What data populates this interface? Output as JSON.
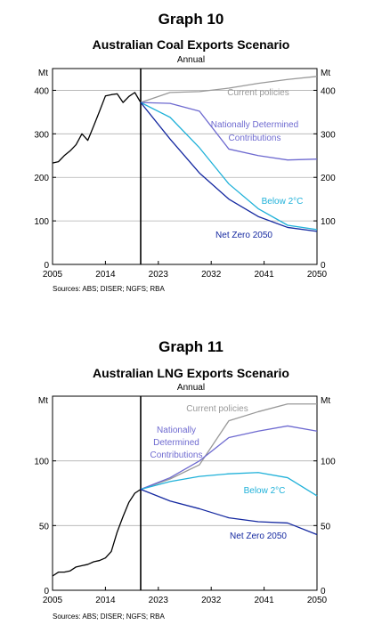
{
  "graphs": [
    {
      "label": "Graph 10",
      "sources": "Sources: ABS; DISER; NGFS; RBA",
      "chart": {
        "title": "Australian Coal Exports Scenario",
        "subtitle": "Annual",
        "unit": "Mt"
      }
    },
    {
      "label": "Graph 11",
      "sources": "Sources: ABS; DISER; NGFS; RBA",
      "chart": {
        "title": "Australian LNG Exports Scenario",
        "subtitle": "Annual",
        "unit": "Mt"
      }
    }
  ],
  "chart_data": [
    {
      "type": "line",
      "title": "Australian Coal Exports Scenario",
      "subtitle": "Annual",
      "ylabel": "Mt",
      "xlim": [
        2005,
        2050
      ],
      "ylim": [
        0,
        450
      ],
      "xticks": [
        2005,
        2014,
        2023,
        2032,
        2041,
        2050
      ],
      "yticks": [
        0,
        100,
        200,
        300,
        400
      ],
      "grid": true,
      "divider_year": 2020,
      "series": [
        {
          "name": "",
          "color": "#000000",
          "x": [
            2005,
            2006,
            2007,
            2008,
            2009,
            2010,
            2011,
            2012,
            2013,
            2014,
            2015,
            2016,
            2017,
            2018,
            2019,
            2020
          ],
          "y": [
            233,
            236,
            250,
            261,
            275,
            300,
            285,
            318,
            352,
            387,
            390,
            392,
            372,
            386,
            395,
            372
          ]
        },
        {
          "name": "Current policies",
          "color": "#999999",
          "x": [
            2020,
            2025,
            2030,
            2035,
            2040,
            2045,
            2050
          ],
          "y": [
            372,
            395,
            397,
            405,
            416,
            425,
            432
          ]
        },
        {
          "name": "Nationally Determined Contributions",
          "color": "#6e6ad0",
          "x": [
            2020,
            2025,
            2030,
            2035,
            2040,
            2045,
            2050
          ],
          "y": [
            372,
            370,
            352,
            265,
            250,
            240,
            242
          ]
        },
        {
          "name": "Below 2°C",
          "color": "#1fb1d9",
          "x": [
            2020,
            2025,
            2030,
            2035,
            2040,
            2045,
            2050
          ],
          "y": [
            372,
            338,
            268,
            185,
            128,
            90,
            80
          ]
        },
        {
          "name": "Net Zero 2050",
          "color": "#1428a0",
          "x": [
            2020,
            2025,
            2030,
            2035,
            2040,
            2045,
            2050
          ],
          "y": [
            372,
            288,
            210,
            150,
            110,
            85,
            76
          ]
        }
      ]
    },
    {
      "type": "line",
      "title": "Australian LNG Exports Scenario",
      "subtitle": "Annual",
      "ylabel": "Mt",
      "xlim": [
        2005,
        2050
      ],
      "ylim": [
        0,
        150
      ],
      "xticks": [
        2005,
        2014,
        2023,
        2032,
        2041,
        2050
      ],
      "yticks": [
        0,
        50,
        100
      ],
      "grid": true,
      "divider_year": 2020,
      "series": [
        {
          "name": "",
          "color": "#000000",
          "x": [
            2005,
            2006,
            2007,
            2008,
            2009,
            2010,
            2011,
            2012,
            2013,
            2014,
            2015,
            2016,
            2017,
            2018,
            2019,
            2020
          ],
          "y": [
            11,
            14,
            14,
            15,
            18,
            19,
            20,
            22,
            23,
            25,
            30,
            45,
            57,
            68,
            75,
            78
          ]
        },
        {
          "name": "Current policies",
          "color": "#999999",
          "x": [
            2020,
            2025,
            2030,
            2035,
            2040,
            2045,
            2050
          ],
          "y": [
            78,
            86,
            97,
            131,
            138,
            144,
            144
          ]
        },
        {
          "name": "Nationally Determined Contributions",
          "color": "#6e6ad0",
          "x": [
            2020,
            2025,
            2030,
            2035,
            2040,
            2045,
            2050
          ],
          "y": [
            78,
            87,
            100,
            118,
            123,
            127,
            123
          ]
        },
        {
          "name": "Below 2°C",
          "color": "#1fb1d9",
          "x": [
            2020,
            2025,
            2030,
            2035,
            2040,
            2045,
            2050
          ],
          "y": [
            78,
            84,
            88,
            90,
            91,
            87,
            73
          ]
        },
        {
          "name": "Net Zero 2050",
          "color": "#1428a0",
          "x": [
            2020,
            2025,
            2030,
            2035,
            2040,
            2045,
            2050
          ],
          "y": [
            78,
            69,
            63,
            56,
            53,
            52,
            43
          ]
        }
      ]
    }
  ],
  "annotations": [
    [
      "Current policies",
      "Nationally Determined",
      "Contributions",
      "Below 2°C",
      "Net Zero 2050"
    ],
    [
      "Current policies",
      "Nationally",
      "Determined",
      "Contributions",
      "Below 2°C",
      "Net Zero 2050"
    ]
  ]
}
